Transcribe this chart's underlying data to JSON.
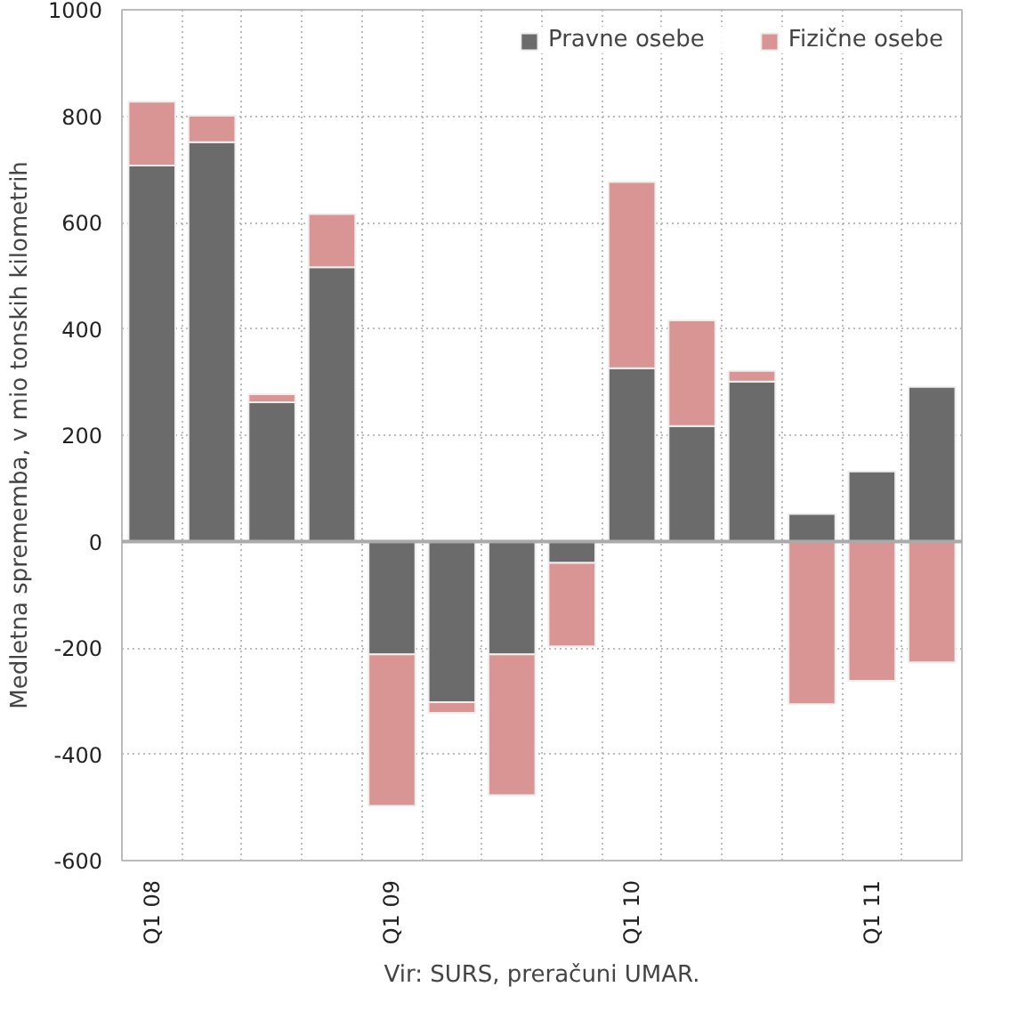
{
  "chart_data": {
    "type": "bar",
    "stacked": true,
    "ylabel": "Medletna sprememba, v mio tonskih kilometrih",
    "categories": [
      "Q1 08",
      null,
      null,
      null,
      "Q1 09",
      null,
      null,
      null,
      "Q1 10",
      null,
      null,
      null,
      "Q1 11",
      null
    ],
    "series": [
      {
        "name": "Pravne osebe",
        "color": "#6b6b6b",
        "values": [
          707,
          751,
          262,
          516,
          -212,
          -302,
          -212,
          -40,
          326,
          217,
          301,
          52,
          132,
          291
        ]
      },
      {
        "name": "Fizične osebe",
        "color": "#d99594",
        "values": [
          120,
          50,
          15,
          100,
          -285,
          -20,
          -265,
          -157,
          350,
          199,
          20,
          -306,
          -262,
          -227
        ]
      }
    ],
    "ylim": [
      -600,
      1000
    ],
    "yticks": [
      -600,
      -400,
      -200,
      0,
      200,
      400,
      600,
      800,
      1000
    ],
    "grid": true,
    "legend": "top right",
    "annotations": [
      "Vir: SURS, preračuni UMAR."
    ]
  }
}
